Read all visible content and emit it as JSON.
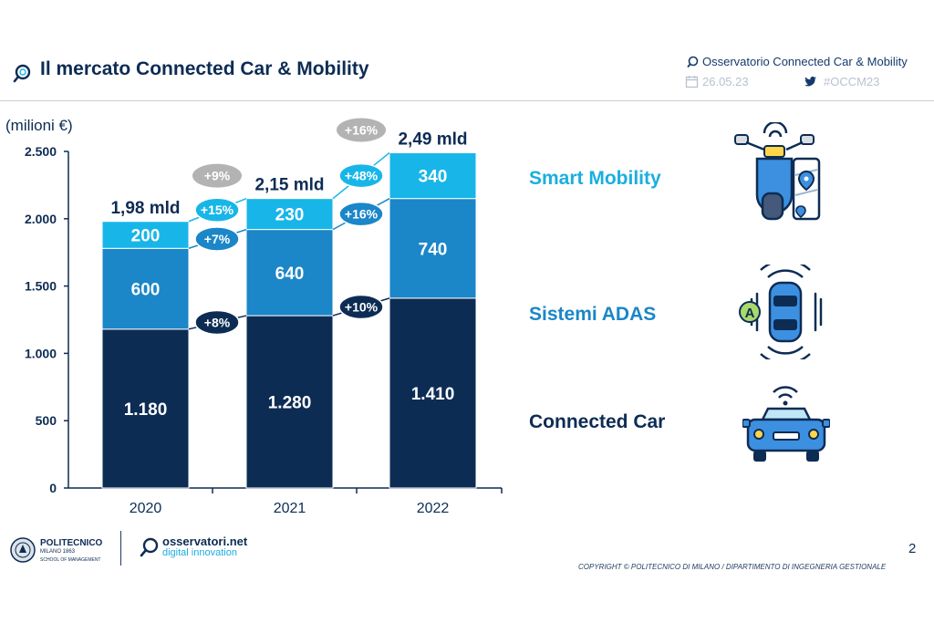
{
  "header": {
    "title": "Il mercato Connected Car & Mobility",
    "observatory": "Osservatorio Connected Car & Mobility",
    "date": "26.05.23",
    "hashtag": "#OCCM23"
  },
  "legend_labels": {
    "smart_mobility": "Smart Mobility",
    "adas": "Sistemi ADAS",
    "connected_car": "Connected Car"
  },
  "colors": {
    "connected_car": "#0d2c54",
    "adas": "#1b86c8",
    "smart_mobility": "#18b6e8",
    "badge_grey": "#b3b3b3"
  },
  "icons": [
    "scooter-map-icon",
    "adas-car-icon",
    "connected-car-icon",
    "search-icon",
    "calendar-icon",
    "twitter-icon"
  ],
  "footer": {
    "polimi_name": "POLITECNICO",
    "polimi_sub": "MILANO 1863",
    "polimi_school": "SCHOOL OF MANAGEMENT",
    "obsnet_line1": "osservatori.net",
    "obsnet_line2": "digital innovation",
    "page_number": "2",
    "copyright": "COPYRIGHT © POLITECNICO DI MILANO / DIPARTIMENTO DI INGEGNERIA GESTIONALE"
  },
  "chart_data": {
    "type": "bar",
    "stacked": true,
    "ylabel": "(milioni €)",
    "ylim": [
      0,
      2500
    ],
    "yticks": [
      0,
      500,
      1000,
      1500,
      2000,
      2500
    ],
    "ytick_labels": [
      "0",
      "500",
      "1.000",
      "1.500",
      "2.000",
      "2.500"
    ],
    "categories": [
      "2020",
      "2021",
      "2022"
    ],
    "series": [
      {
        "name": "Connected Car",
        "values": [
          1180,
          1280,
          1410
        ],
        "labels": [
          "1.180",
          "1.280",
          "1.410"
        ]
      },
      {
        "name": "Sistemi ADAS",
        "values": [
          600,
          640,
          740
        ],
        "labels": [
          "600",
          "640",
          "740"
        ]
      },
      {
        "name": "Smart Mobility",
        "values": [
          200,
          230,
          340
        ],
        "labels": [
          "200",
          "230",
          "340"
        ]
      }
    ],
    "totals": [
      "1,98 mld",
      "2,15 mld",
      "2,49 mld"
    ],
    "growth": {
      "total": [
        "+9%",
        "+16%"
      ],
      "smart_mobility": [
        "+15%",
        "+48%"
      ],
      "adas": [
        "+7%",
        "+16%"
      ],
      "connected_car": [
        "+8%",
        "+10%"
      ]
    }
  }
}
